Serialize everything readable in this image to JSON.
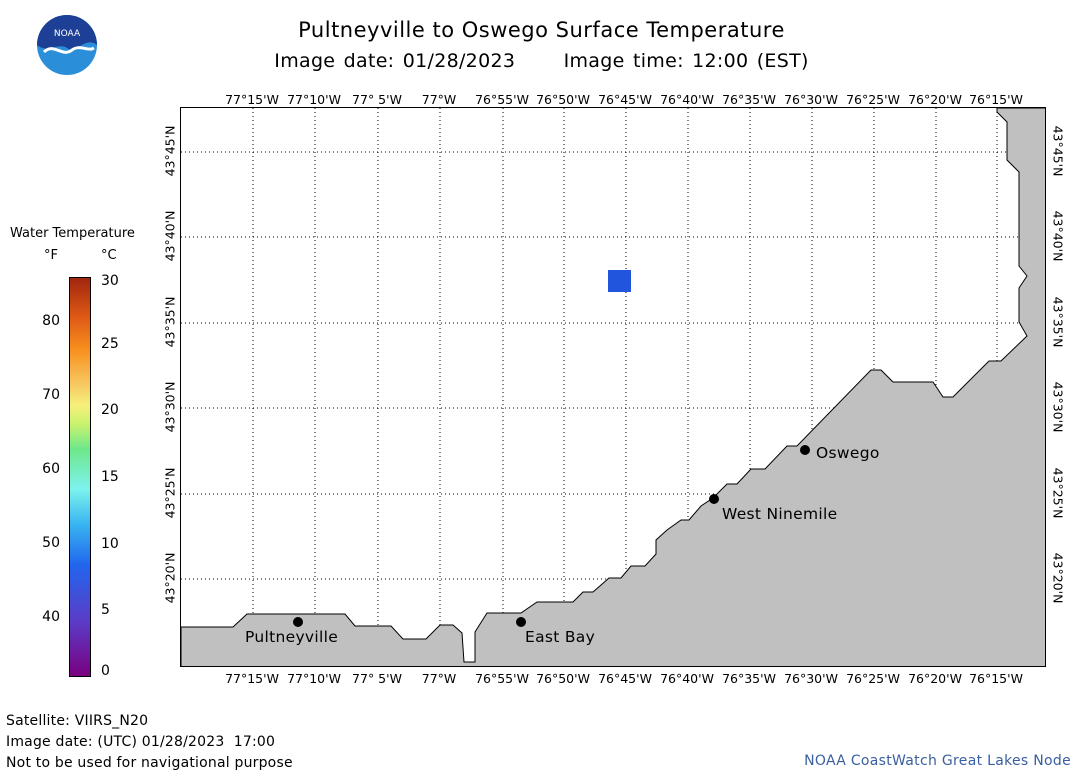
{
  "header": {
    "title": "Pultneyville to Oswego Surface Temperature",
    "image_date": "Image date: 01/28/2023",
    "image_time": "Image time: 12:00 (EST)"
  },
  "logo": {
    "text": "NOAA",
    "icon": "noaa-logo-icon",
    "color_top": "#1e4ba0",
    "color_bottom": "#3aa0e0"
  },
  "legend": {
    "title": "Water Temperature",
    "unit_f": "°F",
    "unit_c": "°C",
    "fahrenheit_ticks": [
      "80",
      "70",
      "60",
      "50",
      "40"
    ],
    "celsius_ticks": [
      "30",
      "25",
      "20",
      "15",
      "10",
      "5",
      "0"
    ]
  },
  "map": {
    "lon_labels": [
      "77°15'W",
      "77°10'W",
      "77° 5'W",
      "77°W",
      "76°55'W",
      "76°50'W",
      "76°45'W",
      "76°40'W",
      "76°35'W",
      "76°30'W",
      "76°25'W",
      "76°20'W",
      "76°15'W"
    ],
    "lat_labels": [
      "43°45'N",
      "43°40'N",
      "43°35'N",
      "43°30'N",
      "43°25'N",
      "43°20'N"
    ],
    "places": {
      "oswego": "Oswego",
      "west_ninemile": "West Ninemile",
      "east_bay": "East Bay",
      "pultneyville": "Pultneyville"
    },
    "land_color": "#c0c0c0",
    "water_color": "#ffffff",
    "data_pixel_color": "#2255dd"
  },
  "footer": {
    "satellite": "Satellite: VIIRS_N20",
    "utc_date": "Image date: (UTC) 01/28/2023  17:00",
    "disclaimer": "Not to be used for navigational purpose",
    "credit": "NOAA CoastWatch Great Lakes Node"
  }
}
